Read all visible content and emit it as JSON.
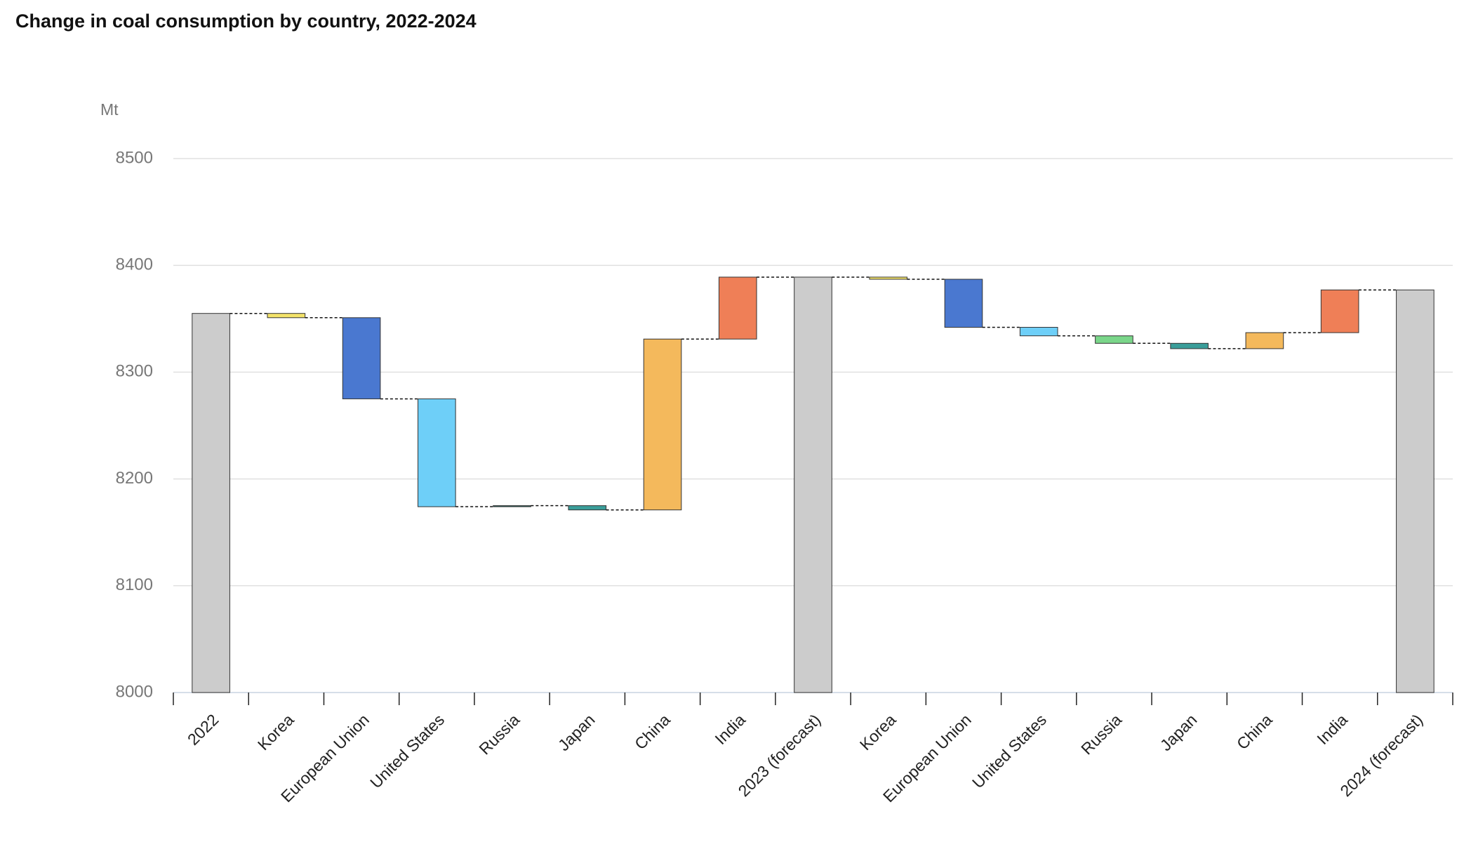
{
  "chart_data": {
    "type": "waterfall",
    "title": "Change in coal consumption by country, 2022-2024",
    "y_label": "Mt",
    "categories": [
      "2022",
      "Korea",
      "European Union",
      "United States",
      "Russia",
      "Japan",
      "China",
      "India",
      "2023 (forecast)",
      "Korea",
      "European Union",
      "United States",
      "Russia",
      "Japan",
      "China",
      "India",
      "2024 (forecast)"
    ],
    "measures": [
      "total",
      "relative",
      "relative",
      "relative",
      "relative",
      "relative",
      "relative",
      "relative",
      "total",
      "relative",
      "relative",
      "relative",
      "relative",
      "relative",
      "relative",
      "relative",
      "total"
    ],
    "values": [
      8355,
      -4,
      -76,
      -101,
      1,
      -4,
      160,
      58,
      8389,
      -2,
      -45,
      -8,
      -7,
      -5,
      15,
      40,
      8377
    ],
    "colors": [
      "#cccccc",
      "#f3e36a",
      "#4a78d0",
      "#6ecff8",
      "#2f6f6a",
      "#3a9e9a",
      "#f4b95c",
      "#ef7f57",
      "#cccccc",
      "#f3e36a",
      "#4a78d0",
      "#6ecff8",
      "#7ad68a",
      "#3a9e9a",
      "#f4b95c",
      "#ef7f57",
      "#cccccc"
    ],
    "ylim": [
      8000,
      8500
    ],
    "yticks": [
      8000,
      8100,
      8200,
      8300,
      8400,
      8500
    ],
    "grid": true
  }
}
